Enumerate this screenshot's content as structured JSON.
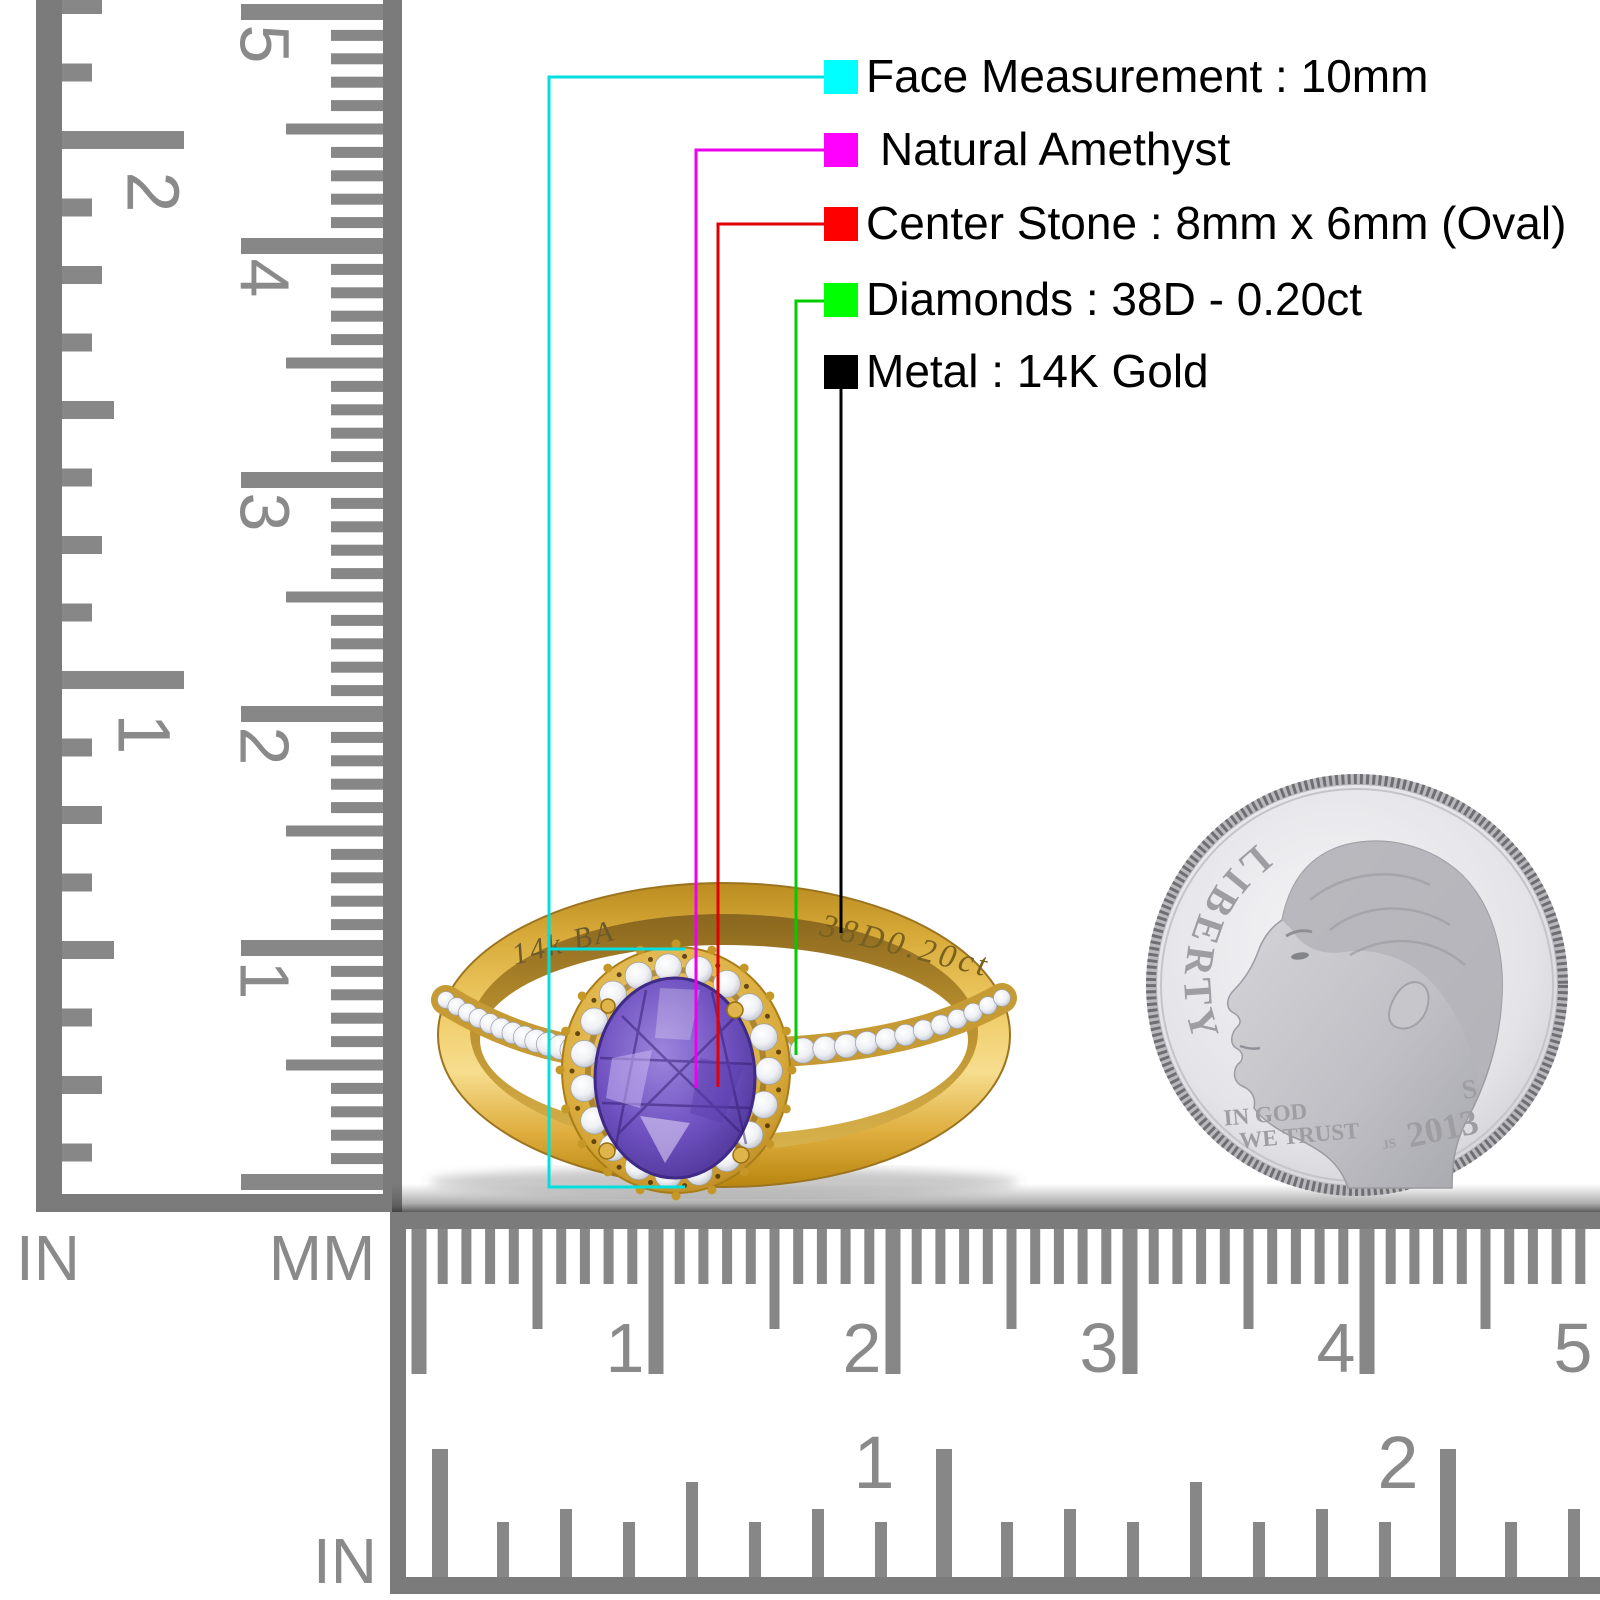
{
  "legend": {
    "items": [
      {
        "label": "Face Measurement : 10mm",
        "swatch_color": "#00ffff",
        "line_color": "#00dfdf"
      },
      {
        "label": "Natural Amethyst",
        "swatch_color": "#ff00ff",
        "line_color": "#ee00ee"
      },
      {
        "label": "Center Stone : 8mm x 6mm (Oval)",
        "swatch_color": "#ff0000",
        "line_color": "#e30000"
      },
      {
        "label": "Diamonds : 38D - 0.20ct",
        "swatch_color": "#00ff00",
        "line_color": "#00cc00"
      },
      {
        "label": "Metal : 14K Gold",
        "swatch_color": "#000000",
        "line_color": "#000000"
      }
    ]
  },
  "ring": {
    "engraving_left": "14k BA",
    "engraving_right": "38D0.20ct",
    "metal_color": "#e9bf55",
    "stone_color": "#6a4dbd"
  },
  "coin": {
    "liberty": "LIBERTY",
    "motto_line1": "IN GOD",
    "motto_line2": "WE TRUST",
    "year": "2013",
    "mint_mark": "S",
    "initials": "JS"
  },
  "rulers": {
    "left_inch": {
      "unit": "IN",
      "labels": [
        "2",
        "1"
      ]
    },
    "left_mm": {
      "unit": "MM",
      "labels": [
        "5",
        "4",
        "3",
        "2",
        "1"
      ]
    },
    "bottom_mm": {
      "labels": [
        "1",
        "2",
        "3",
        "4",
        "5"
      ]
    },
    "bottom_inch": {
      "unit": "IN",
      "labels": [
        "1",
        "2"
      ]
    }
  }
}
